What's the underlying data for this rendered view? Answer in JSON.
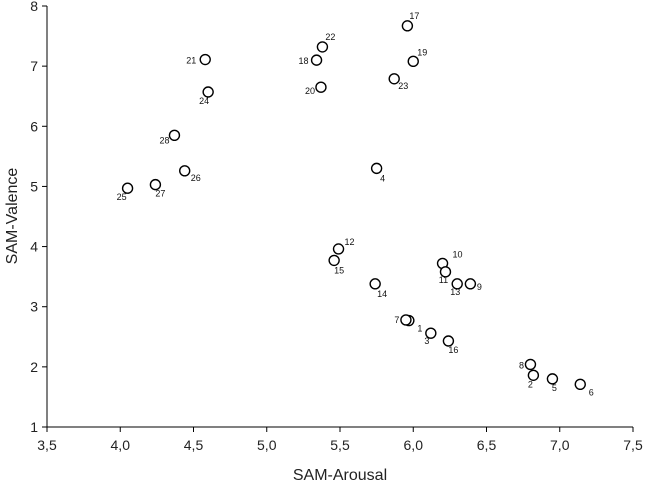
{
  "chart_data": {
    "type": "scatter",
    "title": "",
    "xlabel": "SAM-Arousal",
    "ylabel": "SAM-Valence",
    "xlim": [
      3.5,
      7.5
    ],
    "ylim": [
      1,
      8
    ],
    "grid": false,
    "legend": "none",
    "x_ticks": [
      "3,5",
      "4,0",
      "4,5",
      "5,0",
      "5,5",
      "6,0",
      "6,5",
      "7,0",
      "7,5"
    ],
    "y_ticks": [
      "1",
      "2",
      "3",
      "4",
      "5",
      "6",
      "7",
      "8"
    ],
    "marker": "open-circle",
    "points": [
      {
        "label": "1",
        "x": 5.97,
        "y": 2.77
      },
      {
        "label": "2",
        "x": 6.82,
        "y": 1.86
      },
      {
        "label": "3",
        "x": 6.12,
        "y": 2.56
      },
      {
        "label": "4",
        "x": 5.75,
        "y": 5.3
      },
      {
        "label": "5",
        "x": 6.95,
        "y": 1.8
      },
      {
        "label": "6",
        "x": 7.14,
        "y": 1.71
      },
      {
        "label": "7",
        "x": 5.95,
        "y": 2.78
      },
      {
        "label": "8",
        "x": 6.8,
        "y": 2.04
      },
      {
        "label": "9",
        "x": 6.39,
        "y": 3.38
      },
      {
        "label": "10",
        "x": 6.2,
        "y": 3.72
      },
      {
        "label": "11",
        "x": 6.22,
        "y": 3.58
      },
      {
        "label": "12",
        "x": 5.49,
        "y": 3.96
      },
      {
        "label": "13",
        "x": 6.3,
        "y": 3.38
      },
      {
        "label": "14",
        "x": 5.74,
        "y": 3.38
      },
      {
        "label": "15",
        "x": 5.46,
        "y": 3.77
      },
      {
        "label": "16",
        "x": 6.24,
        "y": 2.43
      },
      {
        "label": "17",
        "x": 5.96,
        "y": 7.67
      },
      {
        "label": "18",
        "x": 5.34,
        "y": 7.1
      },
      {
        "label": "19",
        "x": 6.0,
        "y": 7.08
      },
      {
        "label": "20",
        "x": 5.37,
        "y": 6.65
      },
      {
        "label": "21",
        "x": 4.58,
        "y": 7.11
      },
      {
        "label": "22",
        "x": 5.38,
        "y": 7.32
      },
      {
        "label": "23",
        "x": 5.87,
        "y": 6.79
      },
      {
        "label": "24",
        "x": 4.6,
        "y": 6.57
      },
      {
        "label": "25",
        "x": 4.05,
        "y": 4.97
      },
      {
        "label": "26",
        "x": 4.44,
        "y": 5.26
      },
      {
        "label": "27",
        "x": 4.24,
        "y": 5.03
      },
      {
        "label": "28",
        "x": 4.37,
        "y": 5.85
      }
    ]
  }
}
